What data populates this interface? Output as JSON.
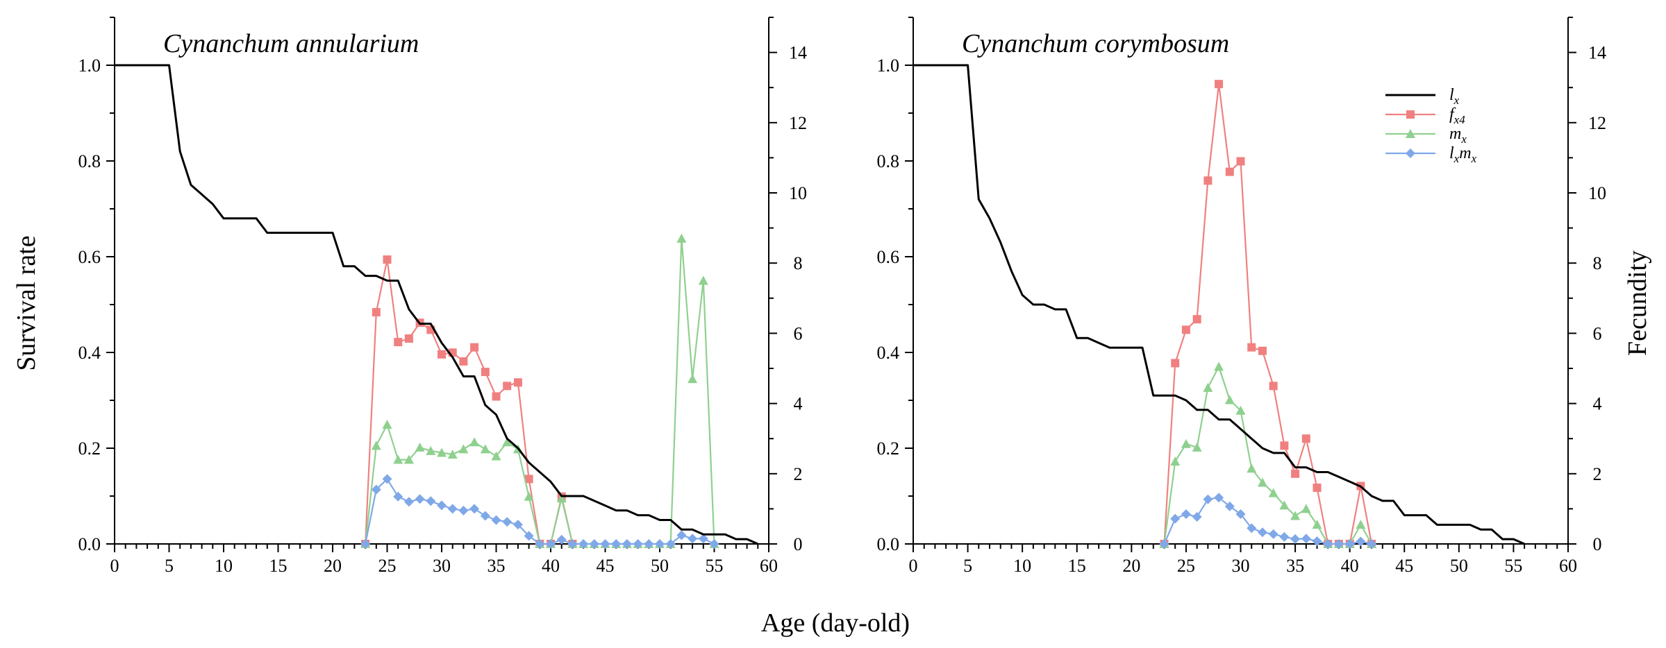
{
  "colors": {
    "lx": "#000000",
    "fx4": "#f08080",
    "mx": "#8fd08f",
    "lxmx": "#7fa8e8"
  },
  "axes": {
    "xlabel": "Age (day-old)",
    "ylabel_left": "Survival rate",
    "ylabel_right": "Fecundity"
  },
  "legend": {
    "lx": {
      "main": "l",
      "sub": "x"
    },
    "fx4": {
      "main": "f",
      "sub": "x4"
    },
    "mx": {
      "main": "m",
      "sub": "x"
    },
    "lxmx": {
      "main1": "l",
      "sub1": "x",
      "main2": "m",
      "sub2": "x"
    }
  },
  "chart_data": [
    {
      "type": "line",
      "title": "Cynanchum annularium",
      "xlabel": "Age (day-old)",
      "ylabel": "Survival rate",
      "y2label": "Fecundity",
      "xlim": [
        0,
        60
      ],
      "ylim": [
        0,
        1.1
      ],
      "y2lim": [
        0,
        15
      ],
      "xticks": [
        0,
        5,
        10,
        15,
        20,
        25,
        30,
        35,
        40,
        45,
        50,
        55,
        60
      ],
      "yticks": [
        "0.0",
        "0.2",
        "0.4",
        "0.6",
        "0.8",
        "1.0"
      ],
      "y2ticks": [
        0,
        2,
        4,
        6,
        8,
        10,
        12,
        14
      ],
      "series": [
        {
          "name": "lx",
          "axis": "left",
          "marker": "none",
          "step": true,
          "x": [
            0,
            5,
            6,
            7,
            8,
            9,
            10,
            11,
            12,
            13,
            14,
            15,
            16,
            17,
            18,
            19,
            20,
            21,
            22,
            23,
            24,
            25,
            26,
            27,
            28,
            29,
            30,
            31,
            32,
            33,
            34,
            35,
            36,
            37,
            38,
            39,
            40,
            41,
            42,
            43,
            44,
            45,
            46,
            47,
            48,
            49,
            50,
            51,
            52,
            53,
            54,
            55,
            56,
            57,
            58,
            59
          ],
          "y": [
            1.0,
            1.0,
            0.82,
            0.75,
            0.73,
            0.71,
            0.68,
            0.68,
            0.68,
            0.68,
            0.65,
            0.65,
            0.65,
            0.65,
            0.65,
            0.65,
            0.65,
            0.58,
            0.58,
            0.56,
            0.56,
            0.55,
            0.55,
            0.49,
            0.46,
            0.46,
            0.42,
            0.39,
            0.35,
            0.35,
            0.29,
            0.27,
            0.22,
            0.2,
            0.17,
            0.15,
            0.13,
            0.1,
            0.1,
            0.1,
            0.09,
            0.08,
            0.07,
            0.07,
            0.06,
            0.06,
            0.05,
            0.05,
            0.03,
            0.03,
            0.02,
            0.02,
            0.02,
            0.01,
            0.01,
            0.0
          ]
        },
        {
          "name": "fx4",
          "axis": "right",
          "marker": "square",
          "x": [
            23,
            24,
            25,
            26,
            27,
            28,
            29,
            30,
            31,
            32,
            33,
            34,
            35,
            36,
            37,
            38,
            39,
            40,
            41,
            42
          ],
          "y": [
            0,
            6.6,
            8.1,
            5.75,
            5.85,
            6.3,
            6.1,
            5.4,
            5.45,
            5.2,
            5.6,
            4.9,
            4.2,
            4.5,
            4.6,
            1.85,
            0,
            0,
            1.35,
            0
          ]
        },
        {
          "name": "mx",
          "axis": "right",
          "marker": "triangle",
          "x": [
            23,
            24,
            25,
            26,
            27,
            28,
            29,
            30,
            31,
            32,
            33,
            34,
            35,
            36,
            37,
            38,
            39,
            40,
            41,
            42,
            43,
            44,
            45,
            46,
            47,
            48,
            49,
            50,
            51,
            52,
            53,
            54,
            55
          ],
          "y": [
            0,
            2.8,
            3.4,
            2.4,
            2.4,
            2.75,
            2.65,
            2.6,
            2.55,
            2.7,
            2.9,
            2.7,
            2.5,
            2.9,
            2.7,
            1.35,
            0,
            0,
            1.3,
            0,
            0,
            0,
            0,
            0,
            0,
            0,
            0,
            0,
            0,
            8.7,
            4.7,
            7.5,
            0
          ]
        },
        {
          "name": "lxmx",
          "axis": "right",
          "marker": "diamond",
          "x": [
            23,
            24,
            25,
            26,
            27,
            28,
            29,
            30,
            31,
            32,
            33,
            34,
            35,
            36,
            37,
            38,
            39,
            40,
            41,
            42,
            43,
            44,
            45,
            46,
            47,
            48,
            49,
            50,
            51,
            52,
            53,
            54,
            55
          ],
          "y": [
            0,
            1.55,
            1.85,
            1.35,
            1.2,
            1.28,
            1.22,
            1.1,
            1.0,
            0.95,
            1.0,
            0.8,
            0.68,
            0.63,
            0.55,
            0.23,
            0,
            0,
            0.12,
            0,
            0,
            0,
            0,
            0,
            0,
            0,
            0,
            0,
            0,
            0.25,
            0.15,
            0.15,
            0
          ]
        }
      ]
    },
    {
      "type": "line",
      "title": "Cynanchum corymbosum",
      "xlabel": "Age (day-old)",
      "ylabel": "Survival rate",
      "y2label": "Fecundity",
      "xlim": [
        0,
        60
      ],
      "ylim": [
        0,
        1.1
      ],
      "y2lim": [
        0,
        15
      ],
      "xticks": [
        0,
        5,
        10,
        15,
        20,
        25,
        30,
        35,
        40,
        45,
        50,
        55,
        60
      ],
      "yticks": [
        "0.0",
        "0.2",
        "0.4",
        "0.6",
        "0.8",
        "1.0"
      ],
      "y2ticks": [
        0,
        2,
        4,
        6,
        8,
        10,
        12,
        14
      ],
      "series": [
        {
          "name": "lx",
          "axis": "left",
          "marker": "none",
          "step": true,
          "x": [
            0,
            5,
            6,
            7,
            8,
            9,
            10,
            11,
            12,
            13,
            14,
            15,
            16,
            17,
            18,
            19,
            20,
            21,
            22,
            23,
            24,
            25,
            26,
            27,
            28,
            29,
            30,
            31,
            32,
            33,
            34,
            35,
            36,
            37,
            38,
            39,
            40,
            41,
            42,
            43,
            44,
            45,
            46,
            47,
            48,
            49,
            50,
            51,
            52,
            53,
            54,
            55,
            56
          ],
          "y": [
            1.0,
            1.0,
            0.72,
            0.68,
            0.63,
            0.57,
            0.52,
            0.5,
            0.5,
            0.49,
            0.49,
            0.43,
            0.43,
            0.42,
            0.41,
            0.41,
            0.41,
            0.41,
            0.31,
            0.31,
            0.31,
            0.3,
            0.28,
            0.28,
            0.26,
            0.26,
            0.24,
            0.22,
            0.2,
            0.19,
            0.19,
            0.16,
            0.16,
            0.15,
            0.15,
            0.14,
            0.13,
            0.12,
            0.1,
            0.09,
            0.09,
            0.06,
            0.06,
            0.06,
            0.04,
            0.04,
            0.04,
            0.04,
            0.03,
            0.03,
            0.01,
            0.01,
            0.0
          ]
        },
        {
          "name": "fx4",
          "axis": "right",
          "marker": "square",
          "x": [
            23,
            24,
            25,
            26,
            27,
            28,
            29,
            30,
            31,
            32,
            33,
            34,
            35,
            36,
            37,
            38,
            39,
            40,
            41,
            42
          ],
          "y": [
            0,
            5.15,
            6.1,
            6.4,
            10.35,
            13.1,
            10.6,
            10.9,
            5.6,
            5.5,
            4.5,
            2.8,
            2.0,
            3.0,
            1.6,
            0,
            0,
            0,
            1.65,
            0
          ]
        },
        {
          "name": "mx",
          "axis": "right",
          "marker": "triangle",
          "x": [
            23,
            24,
            25,
            26,
            27,
            28,
            29,
            30,
            31,
            32,
            33,
            34,
            35,
            36,
            37,
            38,
            39,
            40,
            41,
            42
          ],
          "y": [
            0,
            2.35,
            2.85,
            2.75,
            4.45,
            5.05,
            4.1,
            3.8,
            2.15,
            1.75,
            1.45,
            1.1,
            0.8,
            1.0,
            0.55,
            0,
            0,
            0,
            0.55,
            0
          ]
        },
        {
          "name": "lxmx",
          "axis": "right",
          "marker": "diamond",
          "x": [
            23,
            24,
            25,
            26,
            27,
            28,
            29,
            30,
            31,
            32,
            33,
            34,
            35,
            36,
            37,
            38,
            39,
            40,
            41,
            42
          ],
          "y": [
            0,
            0.72,
            0.85,
            0.77,
            1.27,
            1.32,
            1.07,
            0.85,
            0.45,
            0.33,
            0.28,
            0.2,
            0.14,
            0.15,
            0.08,
            0,
            0,
            0,
            0.07,
            0
          ]
        }
      ]
    }
  ]
}
